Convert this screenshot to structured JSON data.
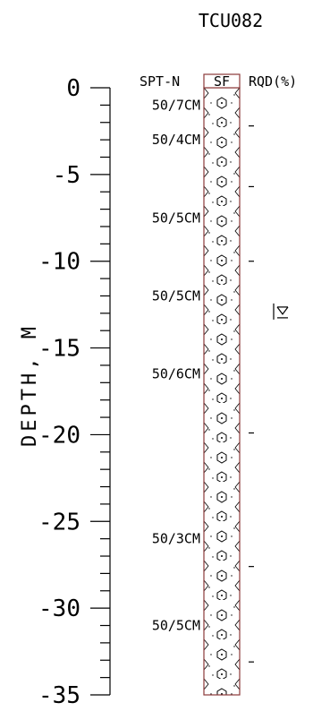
{
  "title": "TCU082",
  "axis": {
    "label": "DEPTH, M",
    "ticks": [
      {
        "depth": 0,
        "label": "0"
      },
      {
        "depth": -5,
        "label": "-5"
      },
      {
        "depth": -10,
        "label": "-10"
      },
      {
        "depth": -15,
        "label": "-15"
      },
      {
        "depth": -20,
        "label": "-20"
      },
      {
        "depth": -25,
        "label": "-25"
      },
      {
        "depth": -30,
        "label": "-30"
      },
      {
        "depth": -35,
        "label": "-35"
      }
    ],
    "minor_step": 1
  },
  "headers": {
    "spt": "SPT-N",
    "soil": "SF",
    "rqd": "RQD(%)"
  },
  "spt_values": [
    {
      "depth": -1.0,
      "label": "50/7CM"
    },
    {
      "depth": -3.0,
      "label": "50/4CM"
    },
    {
      "depth": -7.5,
      "label": "50/5CM"
    },
    {
      "depth": -12.0,
      "label": "50/5CM"
    },
    {
      "depth": -16.5,
      "label": "50/6CM"
    },
    {
      "depth": -26.0,
      "label": "50/3CM"
    },
    {
      "depth": -31.0,
      "label": "50/5CM"
    }
  ],
  "rqd_marks": [
    -2.2,
    -5.7,
    -10.0,
    -19.9,
    -27.6,
    -33.1
  ],
  "water_table": {
    "depth": -12.9,
    "symbol": "∇"
  },
  "column": {
    "top_depth": 0,
    "bottom_depth": -35,
    "fill_pattern": "gravel-hexagon",
    "border_color": "#8b3a3a"
  }
}
